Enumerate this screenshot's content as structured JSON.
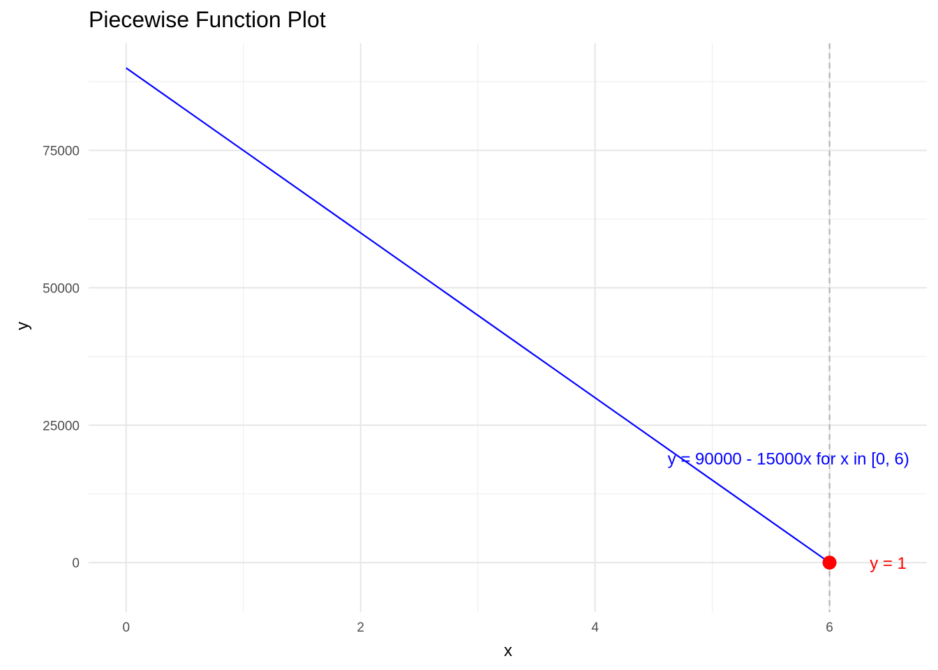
{
  "chart_data": {
    "type": "line",
    "title": "Piecewise Function Plot",
    "xlabel": "x",
    "ylabel": "y",
    "xlim": [
      -0.32,
      6.83
    ],
    "ylim": [
      -9000,
      94500
    ],
    "x_ticks": [
      0,
      2,
      4,
      6
    ],
    "x_minor_ticks": [
      1,
      3,
      5
    ],
    "y_ticks": [
      0,
      25000,
      50000,
      75000
    ],
    "y_minor_ticks": [
      12500,
      37500,
      62500,
      87500
    ],
    "grid": true,
    "series": [
      {
        "x": [
          0,
          6
        ],
        "y": [
          90000,
          0
        ],
        "color": "#0000ff"
      }
    ],
    "points": [
      {
        "x": 6,
        "y": 0,
        "color": "#ff0000"
      }
    ],
    "vlines": [
      {
        "x": 6,
        "style": "dashed",
        "color": "#b3b3b3"
      }
    ],
    "annotations": [
      {
        "text": "y = 90000 - 15000x for x in [0, 6)",
        "x": 5.65,
        "y": 19000,
        "color": "#0000ff",
        "anchor": "middle"
      },
      {
        "text": "y = 1",
        "x": 6.5,
        "y": 0,
        "color": "#ff0000",
        "anchor": "middle"
      }
    ]
  }
}
